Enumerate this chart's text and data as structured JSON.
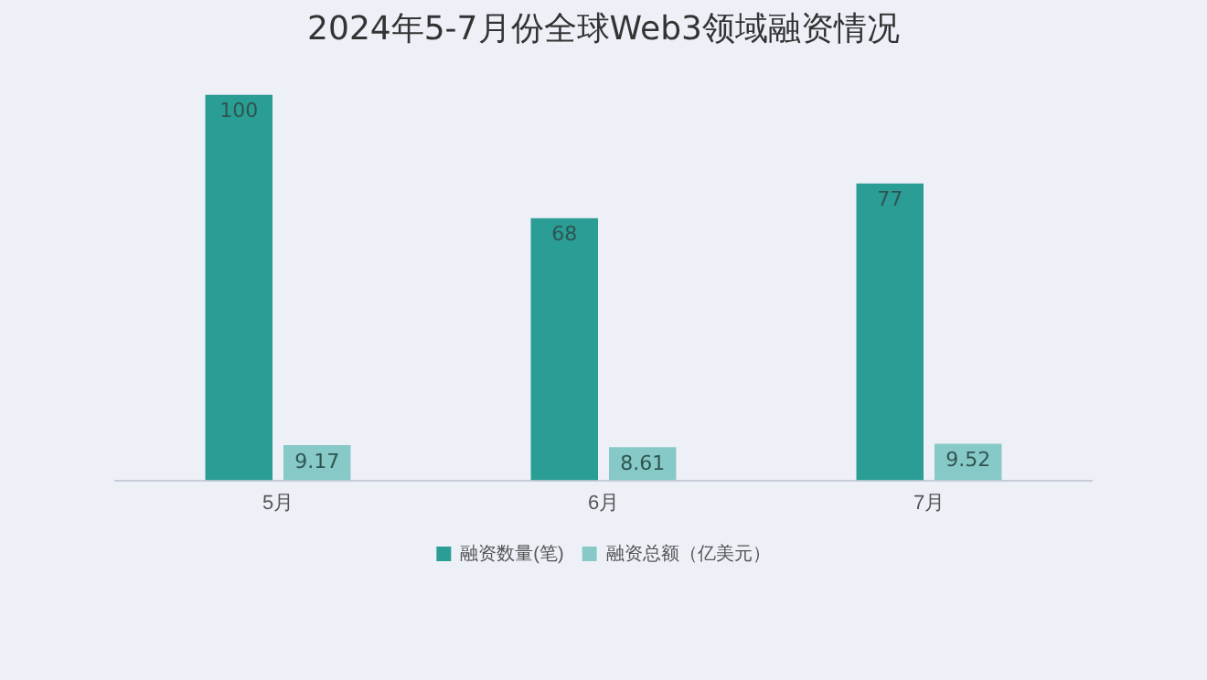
{
  "chart_data": {
    "type": "bar",
    "title": "2024年5-7月份全球Web3领域融资情况",
    "categories": [
      "5月",
      "6月",
      "7月"
    ],
    "series": [
      {
        "name": "融资数量(笔)",
        "color": "#2a9d94",
        "values": [
          100,
          68,
          77
        ]
      },
      {
        "name": "融资总额（亿美元）",
        "color": "#86c9c6",
        "values": [
          9.17,
          8.61,
          9.52
        ]
      }
    ],
    "data_labels": true,
    "legend": "bottom",
    "grid": false
  }
}
